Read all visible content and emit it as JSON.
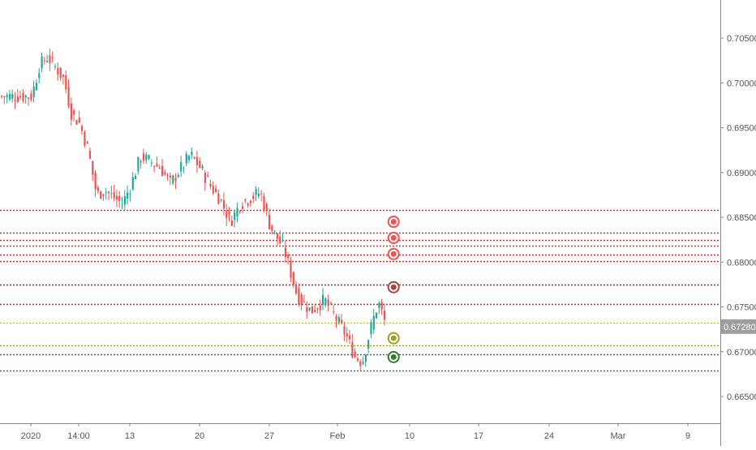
{
  "chart_data": {
    "type": "candlestick",
    "title": "",
    "xlabel": "",
    "ylabel": "",
    "ylim": [
      0.6625,
      0.7095
    ],
    "y_ticks": [
      "0.70500",
      "0.70000",
      "0.69500",
      "0.69000",
      "0.68500",
      "0.68000",
      "0.67500",
      "0.67000",
      "0.66500"
    ],
    "y_tick_values": [
      0.705,
      0.7,
      0.695,
      0.69,
      0.685,
      0.68,
      0.675,
      0.67,
      0.665
    ],
    "x_ticks": [
      "2020",
      "14:00",
      "13",
      "20",
      "27",
      "Feb",
      "10",
      "17",
      "24",
      "Mar",
      "9"
    ],
    "x_tick_dates": [
      "2020-01-01",
      "2020-01-07",
      "2020-01-13",
      "2020-01-20",
      "2020-01-27",
      "2020-02-01",
      "2020-02-10",
      "2020-02-17",
      "2020-02-24",
      "2020-03-01",
      "2020-03-09"
    ],
    "current_price": "0.67280",
    "current_price_value": 0.6728,
    "grid": false,
    "colors": {
      "up": "#26a69a",
      "down": "#ef5350",
      "current_price_badge": "#9e9e9e",
      "axis_line": "#888888",
      "tick_text": "#555555"
    },
    "price_path": {
      "x": [
        "2020-01-01",
        "2020-01-02",
        "2020-01-03",
        "2020-01-05",
        "2020-01-06",
        "2020-01-07",
        "2020-01-08",
        "2020-01-09",
        "2020-01-10",
        "2020-01-12",
        "2020-01-13",
        "2020-01-14",
        "2020-01-15",
        "2020-01-16",
        "2020-01-17",
        "2020-01-19",
        "2020-01-20",
        "2020-01-21",
        "2020-01-22",
        "2020-01-23",
        "2020-01-24",
        "2020-01-26",
        "2020-01-27",
        "2020-01-28",
        "2020-01-29",
        "2020-01-30",
        "2020-01-31",
        "2020-02-02",
        "2020-02-03",
        "2020-02-04",
        "2020-02-05",
        "2020-02-06",
        "2020-02-07"
      ],
      "y": [
        0.6985,
        0.702,
        0.7029,
        0.7005,
        0.6965,
        0.6955,
        0.6925,
        0.6875,
        0.688,
        0.6865,
        0.6885,
        0.6918,
        0.6912,
        0.6905,
        0.6888,
        0.692,
        0.6905,
        0.6885,
        0.687,
        0.6845,
        0.6865,
        0.6878,
        0.684,
        0.6815,
        0.6762,
        0.6745,
        0.6758,
        0.6718,
        0.6695,
        0.6688,
        0.6725,
        0.6755,
        0.6728
      ]
    },
    "horizontal_levels": [
      {
        "value": 0.6858,
        "color": "#d32f2f"
      },
      {
        "value": 0.6833,
        "color": "#d32f2f"
      },
      {
        "value": 0.6825,
        "color": "#d32f2f"
      },
      {
        "value": 0.6818,
        "color": "#d32f2f"
      },
      {
        "value": 0.6808,
        "color": "#d32f2f"
      },
      {
        "value": 0.6801,
        "color": "#d32f2f"
      },
      {
        "value": 0.6775,
        "color": "#b71c1c"
      },
      {
        "value": 0.6753,
        "color": "#c62828"
      },
      {
        "value": 0.6732,
        "color": "#c0ca33"
      },
      {
        "value": 0.6707,
        "color": "#9e9d24"
      },
      {
        "value": 0.6697,
        "color": "#2e7d32"
      },
      {
        "value": 0.6679,
        "color": "#2e7d32"
      }
    ],
    "markers": [
      {
        "date": "2020-02-08",
        "value": 0.6845,
        "color": "#ef5350"
      },
      {
        "date": "2020-02-08",
        "value": 0.6827,
        "color": "#ef5350"
      },
      {
        "date": "2020-02-08",
        "value": 0.6809,
        "color": "#ef5350"
      },
      {
        "date": "2020-02-08",
        "value": 0.6772,
        "color": "#a1463c"
      },
      {
        "date": "2020-02-08",
        "value": 0.6715,
        "color": "#9e9d24"
      },
      {
        "date": "2020-02-08",
        "value": 0.6694,
        "color": "#2e7d32"
      }
    ]
  }
}
